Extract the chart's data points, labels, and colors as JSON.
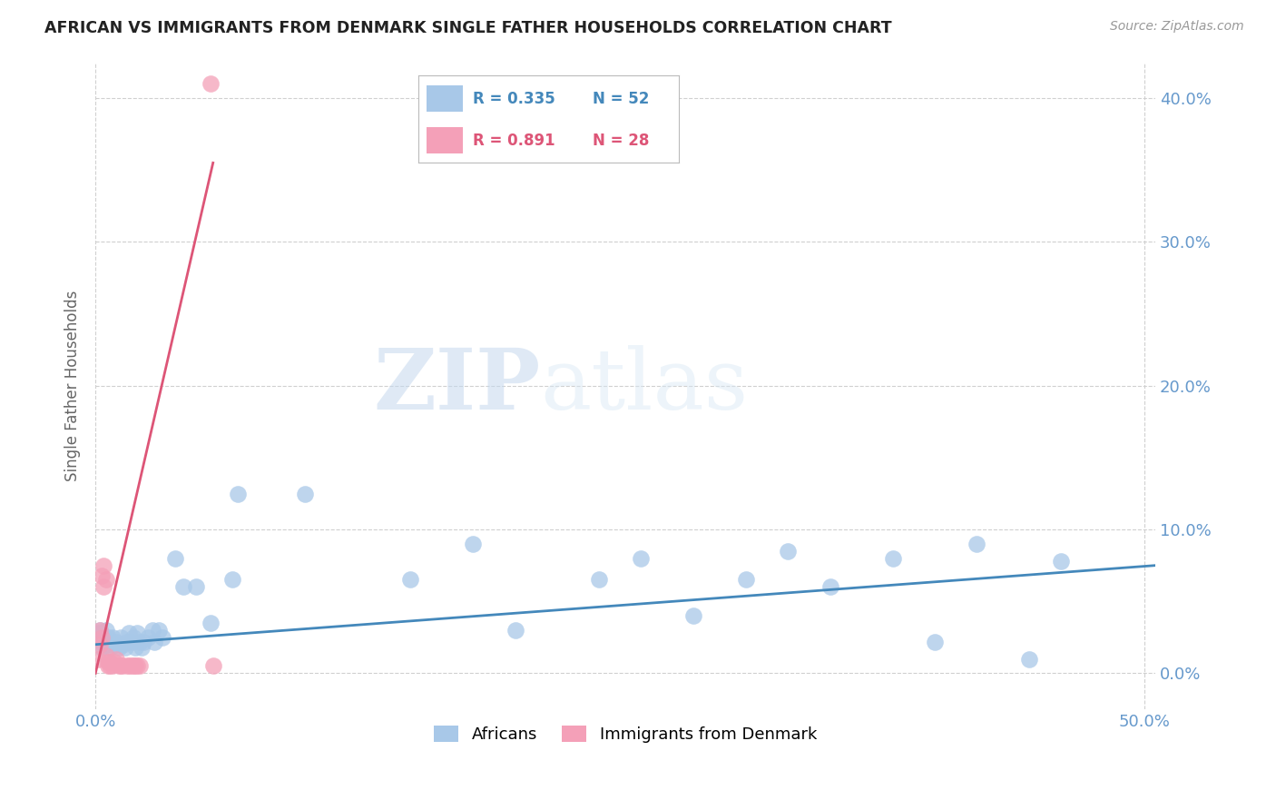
{
  "title": "AFRICAN VS IMMIGRANTS FROM DENMARK SINGLE FATHER HOUSEHOLDS CORRELATION CHART",
  "source": "Source: ZipAtlas.com",
  "ylabel": "Single Father Households",
  "xlim": [
    0,
    0.505
  ],
  "ylim": [
    -0.025,
    0.425
  ],
  "grid_color": "#d0d0d0",
  "background_color": "#ffffff",
  "africans_color": "#a8c8e8",
  "denmark_color": "#f4a0b8",
  "africans_line_color": "#4488bb",
  "denmark_line_color": "#dd5577",
  "legend_R_africans": "R = 0.335",
  "legend_N_africans": "N = 52",
  "legend_R_denmark": "R = 0.891",
  "legend_N_denmark": "N = 28",
  "africans_x": [
    0.001,
    0.002,
    0.003,
    0.003,
    0.004,
    0.005,
    0.005,
    0.006,
    0.007,
    0.007,
    0.008,
    0.009,
    0.01,
    0.011,
    0.012,
    0.013,
    0.014,
    0.015,
    0.016,
    0.017,
    0.018,
    0.019,
    0.02,
    0.021,
    0.022,
    0.023,
    0.025,
    0.027,
    0.028,
    0.03,
    0.032,
    0.038,
    0.042,
    0.048,
    0.055,
    0.065,
    0.068,
    0.1,
    0.15,
    0.18,
    0.2,
    0.24,
    0.26,
    0.285,
    0.31,
    0.33,
    0.35,
    0.38,
    0.4,
    0.42,
    0.445,
    0.46
  ],
  "africans_y": [
    0.028,
    0.03,
    0.022,
    0.018,
    0.025,
    0.03,
    0.02,
    0.025,
    0.018,
    0.022,
    0.025,
    0.02,
    0.022,
    0.018,
    0.025,
    0.02,
    0.018,
    0.022,
    0.028,
    0.022,
    0.025,
    0.018,
    0.028,
    0.022,
    0.018,
    0.022,
    0.025,
    0.03,
    0.022,
    0.03,
    0.025,
    0.08,
    0.06,
    0.06,
    0.035,
    0.065,
    0.125,
    0.125,
    0.065,
    0.09,
    0.03,
    0.065,
    0.08,
    0.04,
    0.065,
    0.085,
    0.06,
    0.08,
    0.022,
    0.09,
    0.01,
    0.078
  ],
  "denmark_x": [
    0.001,
    0.002,
    0.002,
    0.003,
    0.003,
    0.004,
    0.004,
    0.005,
    0.005,
    0.006,
    0.006,
    0.007,
    0.007,
    0.008,
    0.009,
    0.01,
    0.011,
    0.012,
    0.013,
    0.015,
    0.016,
    0.017,
    0.018,
    0.019,
    0.02,
    0.021,
    0.055,
    0.056
  ],
  "denmark_y": [
    0.01,
    0.02,
    0.03,
    0.025,
    0.068,
    0.075,
    0.06,
    0.065,
    0.012,
    0.005,
    0.008,
    0.005,
    0.008,
    0.005,
    0.008,
    0.01,
    0.005,
    0.005,
    0.005,
    0.005,
    0.005,
    0.005,
    0.005,
    0.005,
    0.005,
    0.005,
    0.41,
    0.005
  ],
  "denmark_line_x": [
    0.0,
    0.056
  ],
  "denmark_line_y": [
    0.0,
    0.355
  ],
  "africans_line_x": [
    0.0,
    0.505
  ],
  "africans_line_y": [
    0.02,
    0.075
  ],
  "x_ticks": [
    0.0,
    0.5
  ],
  "y_ticks": [
    0.0,
    0.1,
    0.2,
    0.3,
    0.4
  ]
}
